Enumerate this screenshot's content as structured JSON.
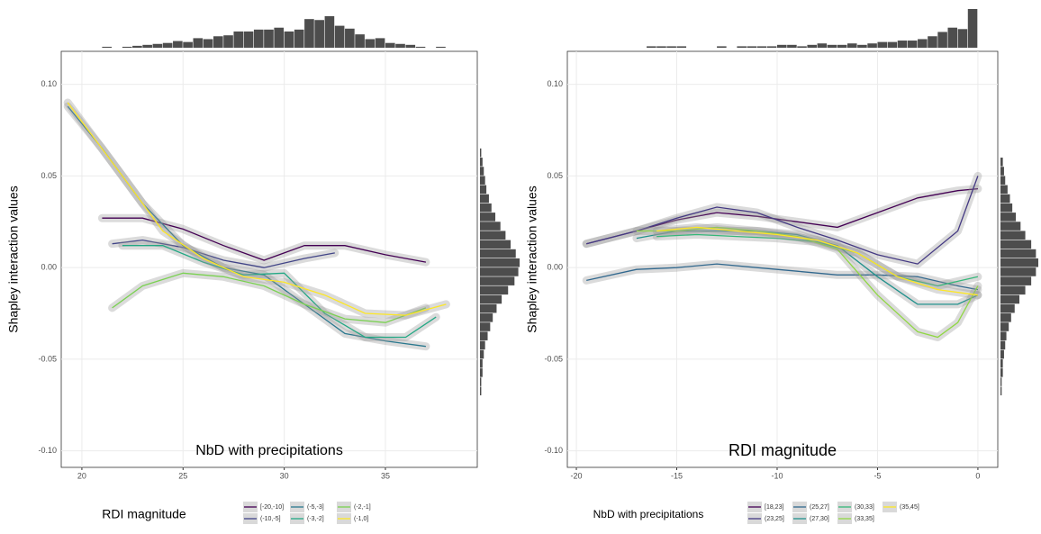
{
  "chart_data": [
    {
      "type": "line",
      "ylabel": "Shapley interaction values",
      "inner_label": "NbD  with precipitations",
      "legend_title": "RDI magnitude",
      "xlim": [
        18.98,
        39.54
      ],
      "xticks": [
        20,
        25,
        30,
        35
      ],
      "ylim": [
        -0.109,
        0.118
      ],
      "yticks": [
        {
          "value": -0.1,
          "label": "-0.10"
        },
        {
          "value": -0.05,
          "label": "-0.05"
        },
        {
          "value": 0,
          "label": "0.00"
        },
        {
          "value": 0.05,
          "label": "0.05"
        },
        {
          "value": 0.1,
          "label": "0.10"
        }
      ],
      "grid": true,
      "series": [
        {
          "name": "[-20,-10]",
          "color": "#440154",
          "x": [
            21,
            23,
            25,
            27,
            29,
            31,
            33,
            35,
            37
          ],
          "values": [
            0.027,
            0.027,
            0.021,
            0.012,
            0.004,
            0.012,
            0.012,
            0.007,
            0.003
          ]
        },
        {
          "name": "(-10,-5]",
          "color": "#414487",
          "x": [
            21.5,
            23,
            25,
            27,
            29,
            31,
            32.5
          ],
          "values": [
            0.013,
            0.015,
            0.011,
            0.004,
            0.0,
            0.005,
            0.008
          ]
        },
        {
          "name": "(-5,-3]",
          "color": "#2a788e",
          "x": [
            19.3,
            21,
            23,
            25,
            27,
            29,
            31,
            33,
            35,
            37
          ],
          "values": [
            0.088,
            0.065,
            0.035,
            0.012,
            0.0,
            -0.004,
            -0.02,
            -0.036,
            -0.04,
            -0.043
          ]
        },
        {
          "name": "(-3,-2]",
          "color": "#22a884",
          "x": [
            22,
            24,
            26,
            28,
            30,
            32,
            34,
            36,
            37.5
          ],
          "values": [
            0.012,
            0.012,
            0.003,
            -0.004,
            -0.003,
            -0.025,
            -0.038,
            -0.038,
            -0.027
          ]
        },
        {
          "name": "(-2,-1]",
          "color": "#7ad151",
          "x": [
            21.5,
            23,
            25,
            27,
            29,
            31,
            33,
            35,
            37
          ],
          "values": [
            -0.022,
            -0.01,
            -0.003,
            -0.005,
            -0.01,
            -0.02,
            -0.028,
            -0.03,
            -0.022
          ]
        },
        {
          "name": "(-1,0]",
          "color": "#fde725",
          "x": [
            19.3,
            22,
            24,
            26,
            28,
            30,
            32,
            34,
            36,
            38
          ],
          "values": [
            0.09,
            0.05,
            0.02,
            0.005,
            -0.005,
            -0.008,
            -0.015,
            -0.025,
            -0.026,
            -0.02
          ]
        }
      ],
      "top_histogram": {
        "bins": [
          21,
          21.5,
          22,
          22.5,
          23,
          23.5,
          24,
          24.5,
          25,
          25.5,
          26,
          26.5,
          27,
          27.5,
          28,
          28.5,
          29,
          29.5,
          30,
          30.5,
          31,
          31.5,
          32,
          32.5,
          33,
          33.5,
          34,
          34.5,
          35,
          35.5,
          36,
          36.5,
          37,
          37.5,
          38
        ],
        "counts": [
          1,
          0,
          1,
          2,
          3,
          4,
          5,
          7,
          6,
          10,
          9,
          12,
          13,
          17,
          17,
          19,
          19,
          21,
          17,
          19,
          30,
          29,
          33,
          23,
          20,
          14,
          9,
          10,
          5,
          4,
          3,
          1,
          0,
          1
        ]
      },
      "right_histogram": {
        "bins": [
          -0.07,
          -0.065,
          -0.06,
          -0.055,
          -0.05,
          -0.045,
          -0.04,
          -0.035,
          -0.03,
          -0.025,
          -0.02,
          -0.015,
          -0.01,
          -0.005,
          0,
          0.005,
          0.01,
          0.015,
          0.02,
          0.025,
          0.03,
          0.035,
          0.04,
          0.045,
          0.05,
          0.055,
          0.06,
          0.065
        ],
        "counts": [
          1,
          1,
          2,
          2,
          3,
          4,
          6,
          8,
          10,
          13,
          17,
          22,
          27,
          30,
          31,
          28,
          24,
          20,
          16,
          12,
          9,
          7,
          5,
          4,
          3,
          2,
          1
        ]
      }
    },
    {
      "type": "line",
      "ylabel": "Shapley interaction values",
      "inner_label": "RDI magnitude",
      "legend_title": "NbD  with precipitations",
      "xlim": [
        -20.45,
        0.99
      ],
      "xticks": [
        -20,
        -15,
        -10,
        -5,
        0
      ],
      "ylim": [
        -0.109,
        0.118
      ],
      "yticks": [
        {
          "value": -0.1,
          "label": "-0.10"
        },
        {
          "value": -0.05,
          "label": "-0.05"
        },
        {
          "value": 0,
          "label": "0.00"
        },
        {
          "value": 0.05,
          "label": "0.05"
        },
        {
          "value": 0.1,
          "label": "0.10"
        }
      ],
      "grid": true,
      "series": [
        {
          "name": "[18,23]",
          "color": "#440154",
          "x": [
            -19.5,
            -17,
            -15,
            -13,
            -11,
            -9,
            -7,
            -5,
            -3,
            -1,
            0
          ],
          "values": [
            0.013,
            0.02,
            0.026,
            0.03,
            0.028,
            0.025,
            0.022,
            0.03,
            0.038,
            0.042,
            0.043
          ]
        },
        {
          "name": "(23,25]",
          "color": "#443983",
          "x": [
            -19.5,
            -17,
            -15,
            -13,
            -11,
            -9,
            -7,
            -5,
            -3,
            -1,
            0
          ],
          "values": [
            0.013,
            0.02,
            0.027,
            0.033,
            0.03,
            0.022,
            0.015,
            0.007,
            0.002,
            0.02,
            0.05
          ]
        },
        {
          "name": "(25,27]",
          "color": "#31688e",
          "x": [
            -19.5,
            -17,
            -15,
            -13,
            -11,
            -9,
            -7,
            -5,
            -3,
            -1,
            0
          ],
          "values": [
            -0.007,
            -0.001,
            0.0,
            0.002,
            0.0,
            -0.002,
            -0.004,
            -0.004,
            -0.005,
            -0.01,
            -0.012
          ]
        },
        {
          "name": "(27,30]",
          "color": "#21918c",
          "x": [
            -17,
            -15,
            -13,
            -11,
            -9,
            -7,
            -5,
            -3,
            -1,
            0
          ],
          "values": [
            0.016,
            0.02,
            0.02,
            0.02,
            0.018,
            0.012,
            -0.005,
            -0.02,
            -0.02,
            -0.015
          ]
        },
        {
          "name": "(30,33]",
          "color": "#35b779",
          "x": [
            -16,
            -14,
            -12,
            -10,
            -8,
            -6,
            -4,
            -2,
            0
          ],
          "values": [
            0.017,
            0.018,
            0.017,
            0.016,
            0.014,
            0.008,
            -0.005,
            -0.01,
            -0.005
          ]
        },
        {
          "name": "(33,35]",
          "color": "#90d743",
          "x": [
            -17,
            -15,
            -13,
            -11,
            -9,
            -7,
            -5,
            -3,
            -2,
            -1,
            0
          ],
          "values": [
            0.02,
            0.02,
            0.022,
            0.02,
            0.017,
            0.01,
            -0.015,
            -0.035,
            -0.038,
            -0.03,
            -0.01
          ]
        },
        {
          "name": "(35,45]",
          "color": "#fde725",
          "x": [
            -16,
            -14,
            -12,
            -10,
            -8,
            -6,
            -4,
            -2,
            0
          ],
          "values": [
            0.02,
            0.022,
            0.02,
            0.018,
            0.015,
            0.008,
            -0.005,
            -0.012,
            -0.015
          ]
        }
      ],
      "top_histogram": {
        "bins": [
          -20,
          -19.5,
          -19,
          -18.5,
          -18,
          -17.5,
          -17,
          -16.5,
          -16,
          -15.5,
          -15,
          -14.5,
          -14,
          -13.5,
          -13,
          -12.5,
          -12,
          -11.5,
          -11,
          -10.5,
          -10,
          -9.5,
          -9,
          -8.5,
          -8,
          -7.5,
          -7,
          -6.5,
          -6,
          -5.5,
          -5,
          -4.5,
          -4,
          -3.5,
          -3,
          -2.5,
          -2,
          -1.5,
          -1,
          -0.5,
          0
        ],
        "counts": [
          0,
          0,
          0,
          0,
          0,
          0,
          0,
          1,
          1,
          1,
          1,
          0,
          0,
          0,
          1,
          0,
          1,
          1,
          1,
          1,
          2,
          2,
          1,
          2,
          3,
          2,
          2,
          3,
          2,
          3,
          4,
          4,
          5,
          5,
          6,
          8,
          11,
          14,
          13,
          27
        ]
      },
      "right_histogram": {
        "bins": [
          -0.07,
          -0.065,
          -0.06,
          -0.055,
          -0.05,
          -0.045,
          -0.04,
          -0.035,
          -0.03,
          -0.025,
          -0.02,
          -0.015,
          -0.01,
          -0.005,
          0,
          0.005,
          0.01,
          0.015,
          0.02,
          0.025,
          0.03,
          0.035,
          0.04,
          0.045,
          0.05,
          0.055,
          0.06
        ],
        "counts": [
          1,
          1,
          2,
          2,
          3,
          4,
          5,
          7,
          9,
          12,
          16,
          21,
          26,
          30,
          32,
          30,
          26,
          21,
          17,
          13,
          10,
          8,
          6,
          4,
          3,
          2
        ]
      }
    }
  ]
}
